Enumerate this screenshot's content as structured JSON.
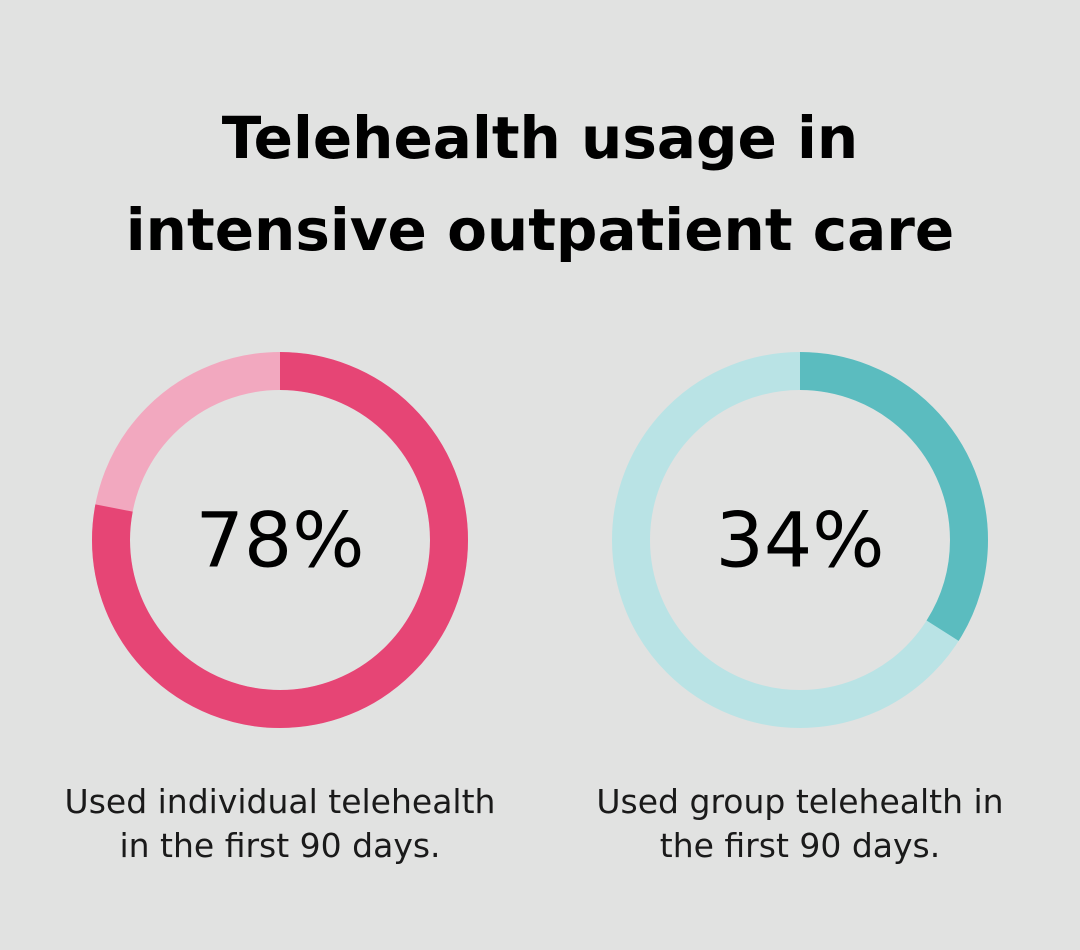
{
  "title": {
    "line1": "Telehealth usage in",
    "line2": "intensive outpatient care"
  },
  "chart_data": [
    {
      "type": "pie",
      "value": 78,
      "value_label": "78%",
      "caption_lines": [
        "Used individual telehealth",
        "in the first 90 days."
      ],
      "colors": {
        "fill": "#e64575",
        "track": "#f2a8bf"
      }
    },
    {
      "type": "pie",
      "value": 34,
      "value_label": "34%",
      "caption_lines": [
        "Used group telehealth in",
        "the first 90 days."
      ],
      "colors": {
        "fill": "#5bbcbf",
        "track": "#b9e3e5"
      }
    }
  ]
}
